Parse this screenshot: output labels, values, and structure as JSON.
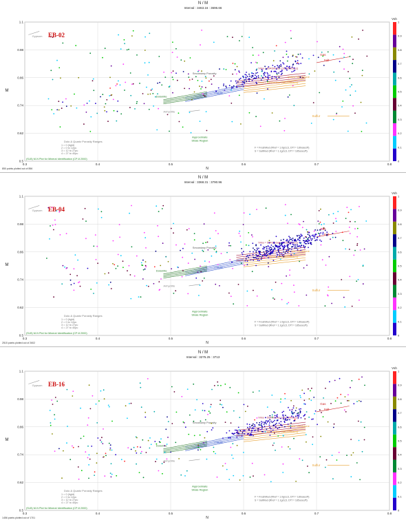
{
  "chart_data": [
    {
      "type": "scatter",
      "title": "N / M",
      "interval": "Interval : 3463.16 : 3696.66",
      "well": "EB-02",
      "footer": "850 points plotted out of 856",
      "xlabel": "N",
      "ylabel": "M",
      "xlim": [
        0.3,
        0.8
      ],
      "ylim": [
        0.5,
        1.1
      ],
      "xticks": [
        "0.3",
        "0.4",
        "0.5",
        "0.6",
        "0.7",
        "0.8"
      ],
      "yticks": [
        "0.5",
        "0.62",
        "0.74",
        "0.86",
        "0.98",
        "1.1"
      ],
      "colorbar_title": "Vsh",
      "colorbar_ticks": [
        "0",
        "0.1",
        "0.2",
        "0.3",
        "0.4",
        "0.5",
        "0.6",
        "0.7",
        "0.8",
        "0.9",
        "1"
      ],
      "cluster": {
        "count": 850,
        "blue_center": [
          0.61,
          0.87
        ],
        "spread": "wide"
      },
      "annotations": {
        "gypsum": "Gypsum",
        "anhydrite": "Anhydrite",
        "sulfur": "Sulfur",
        "secondary": "Secondary Porosity",
        "dolomite": "Dolomite",
        "calcite": "Calcite",
        "quartz": "Quartz Sandstone",
        "salt": "Salt",
        "gas": "Gas",
        "vma1": "Vma = 5943m/sec (19,500ft/sec)",
        "vma2": "Vma = 5486m/sec (18,000ft/sec)",
        "shale": "Approximate Shale Region",
        "legend_title": "Dolo & Quartz Porosity Ranges",
        "legend_lines": [
          "1 = 0 (tight)",
          "2 = 0 to 12pu",
          "3 = 12 to 27pu",
          "4 = 27 to 40pu"
        ],
        "footnote1": "F = FreshMud (Rhof = 1.0g/cc3, DTf = 189usec/ft)",
        "footnote2": "S = SaltMud (Rhof = 1.1g/cc3, DTf = 185usec/ft)",
        "source": "(SLB) M-N Plot for Mineral Identification (CP-8 2000)"
      }
    },
    {
      "type": "scatter",
      "title": "N / M",
      "interval": "Interval : 3368.31 : 3790.96",
      "well": "EB-04",
      "footer": "2515 points plotted out of 2602",
      "xlabel": "N",
      "ylabel": "M",
      "xlim": [
        0.3,
        0.8
      ],
      "ylim": [
        0.5,
        1.1
      ],
      "xticks": [
        "0.3",
        "0.4",
        "0.5",
        "0.6",
        "0.7",
        "0.8"
      ],
      "yticks": [
        "0.5",
        "0.62",
        "0.74",
        "0.86",
        "0.98",
        "1.1"
      ],
      "colorbar_title": "Vsh",
      "colorbar_ticks": [
        "0",
        "0.1",
        "0.2",
        "0.3",
        "0.4",
        "0.5",
        "0.6",
        "0.7",
        "0.8",
        "0.9",
        "1"
      ],
      "cluster": {
        "count": 2515,
        "blue_center": [
          0.64,
          0.88
        ],
        "spread": "dense"
      },
      "annotations": {
        "gypsum": "Gypsum",
        "anhydrite": "Anhydrite",
        "sulfur": "Sulfur",
        "secondary": "Secondary Porosity",
        "dolomite": "Dolomite",
        "calcite": "Calcite",
        "quartz": "Quartz Sandstone",
        "salt": "Salt",
        "gas": "Gas",
        "vma1": "Vma = 5943m/sec (19,500ft/sec)",
        "vma2": "Vma = 5486m/sec (18,000ft/sec)",
        "shale": "Approximate Shale Region",
        "legend_title": "Dolo & Quartz Porosity Ranges",
        "legend_lines": [
          "1 = 0 (tight)",
          "2 = 0 to 12pu",
          "3 = 12 to 27pu",
          "4 = 27 to 40pu"
        ],
        "footnote1": "F = FreshMud (Rhof = 1.0g/cc3, DTf = 189usec/ft)",
        "footnote2": "S = SaltMud (Rhof = 1.1g/cc3, DTf = 185usec/ft)",
        "source": "(SLB) M-N Plot for Mineral Identification (CP-8 2000)"
      }
    },
    {
      "type": "scatter",
      "title": "N / M",
      "interval": "Interval : 3275.25 : 3713",
      "well": "EB-16",
      "footer": "1456 points plotted out of 1701",
      "xlabel": "N",
      "ylabel": "M",
      "xlim": [
        0.3,
        0.8
      ],
      "ylim": [
        0.5,
        1.1
      ],
      "xticks": [
        "0.3",
        "0.4",
        "0.5",
        "0.6",
        "0.7",
        "0.8"
      ],
      "yticks": [
        "0.5",
        "0.62",
        "0.74",
        "0.86",
        "0.98",
        "1.1"
      ],
      "colorbar_title": "Vsh",
      "colorbar_ticks": [
        "0",
        "0.1",
        "0.2",
        "0.3",
        "0.4",
        "0.5",
        "0.6",
        "0.7",
        "0.8",
        "0.9",
        "1"
      ],
      "cluster": {
        "count": 1456,
        "blue_center": [
          0.62,
          0.87
        ],
        "spread": "wide"
      },
      "annotations": {
        "gypsum": "Gypsum",
        "anhydrite": "Anhydrite",
        "sulfur": "Sulfur",
        "secondary": "Secondary Porosity",
        "dolomite": "Dolomite",
        "calcite": "Calcite",
        "quartz": "Quartz Sandstone",
        "salt": "Salt",
        "gas": "Gas",
        "vma1": "Vma = 5943m/sec (19,500ft/sec)",
        "vma2": "Vma = 5486m/sec (18,000ft/sec)",
        "shale": "Approximate Shale Region",
        "legend_title": "Dolo & Quartz Porosity Ranges",
        "legend_lines": [
          "1 = 0 (tight)",
          "2 = 0 to 12pu",
          "3 = 12 to 27pu",
          "4 = 27 to 40pu"
        ],
        "footnote1": "F = FreshMud (Rhof = 1.0g/cc3, DTf = 189usec/ft)",
        "footnote2": "S = SaltMud (Rhof = 1.1g/cc3, DTf = 185usec/ft)",
        "source": "(SLB) M-N Plot for Mineral Identification (CP-8 2000)"
      }
    }
  ],
  "colors": {
    "colorbar": [
      "#2200cc",
      "#00ccff",
      "#ff33ff",
      "#008833",
      "#660033",
      "#00cc00",
      "#00aaaa",
      "#000088",
      "#888800",
      "#660099",
      "#ff2222"
    ],
    "gas_arrow": "#cc2222",
    "quartz_lines": "#e8a030",
    "dolomite_lines": "#2a7a2a",
    "calcite_lines": "#3355cc",
    "salt_lines": "#aa2244",
    "label_red": "#cc1111"
  }
}
